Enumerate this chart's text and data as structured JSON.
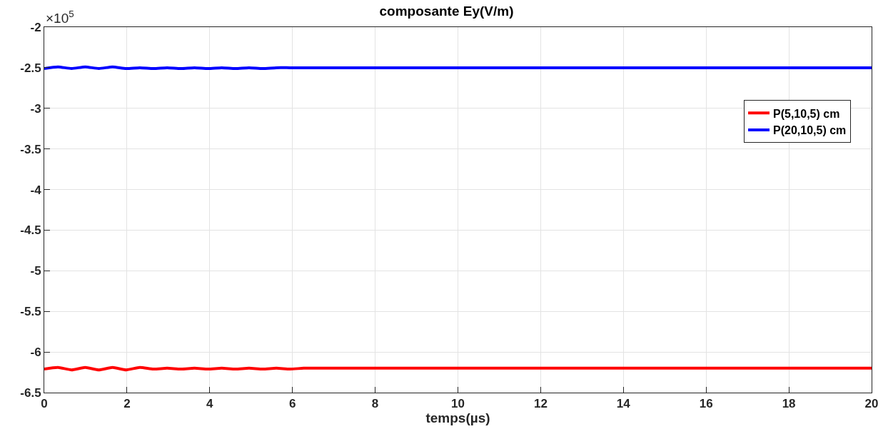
{
  "chart_data": {
    "type": "line",
    "title": "composante Ey(V/m)",
    "xlabel": "temps(µs)",
    "annotations": [
      "×10$^{5}$"
    ],
    "x": [
      0,
      0.33,
      0.66,
      0.99,
      1.32,
      1.65,
      1.98,
      2.31,
      2.64,
      2.97,
      3.3,
      3.63,
      3.96,
      4.29,
      4.62,
      4.95,
      5.28,
      5.61,
      5.94,
      6.27,
      6.6,
      6.93,
      7.26,
      7.59,
      7.92,
      8.25,
      8.58,
      8.91,
      9.24,
      9.57,
      9.9,
      12,
      14,
      16,
      18,
      20
    ],
    "series": [
      {
        "name": "P(5,10,5) cm",
        "color": "#ff0000",
        "values": [
          -6.21,
          -6.19,
          -6.22,
          -6.19,
          -6.22,
          -6.19,
          -6.22,
          -6.19,
          -6.21,
          -6.2,
          -6.21,
          -6.2,
          -6.21,
          -6.2,
          -6.21,
          -6.2,
          -6.21,
          -6.2,
          -6.21,
          -6.2,
          -6.2,
          -6.2,
          -6.2,
          -6.2,
          -6.2,
          -6.2,
          -6.2,
          -6.2,
          -6.2,
          -6.2,
          -6.2,
          -6.2,
          -6.2,
          -6.2,
          -6.2,
          -6.2
        ]
      },
      {
        "name": "P(20,10,5) cm",
        "color": "#0000ff",
        "values": [
          -2.51,
          -2.49,
          -2.51,
          -2.49,
          -2.51,
          -2.49,
          -2.51,
          -2.5,
          -2.51,
          -2.5,
          -2.51,
          -2.5,
          -2.51,
          -2.5,
          -2.51,
          -2.5,
          -2.51,
          -2.5,
          -2.5,
          -2.5,
          -2.5,
          -2.5,
          -2.5,
          -2.5,
          -2.5,
          -2.5,
          -2.5,
          -2.5,
          -2.5,
          -2.5,
          -2.5,
          -2.5,
          -2.5,
          -2.5,
          -2.5,
          -2.5
        ]
      }
    ],
    "xlim": [
      0,
      20
    ],
    "xticks": [
      0,
      2,
      4,
      6,
      8,
      10,
      12,
      14,
      16,
      18,
      20
    ],
    "ylim": [
      -6.5,
      -2
    ],
    "yticks": [
      -6.5,
      -6,
      -5.5,
      -5,
      -4.5,
      -4,
      -3.5,
      -3,
      -2.5,
      -2
    ],
    "grid": true,
    "legend": "top right",
    "marker": "none",
    "line_style": "solid"
  }
}
